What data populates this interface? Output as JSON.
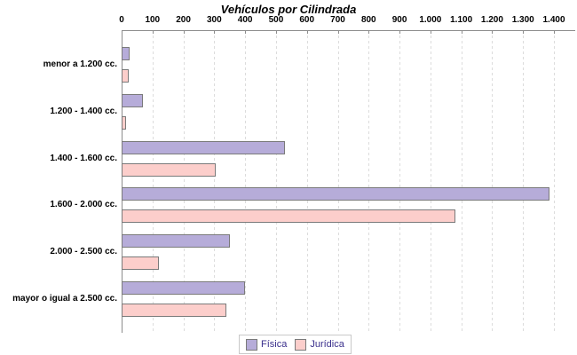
{
  "title": "Vehículos por Cilindrada",
  "chart_data": {
    "type": "bar",
    "orientation": "horizontal",
    "title": "Vehículos por Cilindrada",
    "categories": [
      "menor a 1.200 cc.",
      "1.200 - 1.400 cc.",
      "1.400 - 1.600 cc.",
      "1.600 - 2.000 cc.",
      "2.000 - 2.500 cc.",
      "mayor o igual a 2.500 cc."
    ],
    "series": [
      {
        "name": "Física",
        "color": "#b6acd9",
        "values": [
          25,
          68,
          530,
          1385,
          350,
          400
        ]
      },
      {
        "name": "Jurídica",
        "color": "#fccecb",
        "values": [
          22,
          13,
          305,
          1080,
          120,
          340
        ]
      }
    ],
    "xlim": [
      0,
      1400
    ],
    "x_tick_step": 100,
    "x_tick_labels": [
      "0",
      "100",
      "200",
      "300",
      "400",
      "500",
      "600",
      "700",
      "800",
      "900",
      "1.000",
      "1.100",
      "1.200",
      "1.300",
      "1.400"
    ],
    "grid": "vertical-dashed",
    "axis_position": "top",
    "legend_position": "bottom-center"
  },
  "colors": {
    "bar_border": "#7a7a7a",
    "axis": "#8c8c8c",
    "grid": "#dcdcdc",
    "legend_text": "#3a2f8c",
    "legend_border": "#c9c9c9",
    "title": "#000000"
  }
}
